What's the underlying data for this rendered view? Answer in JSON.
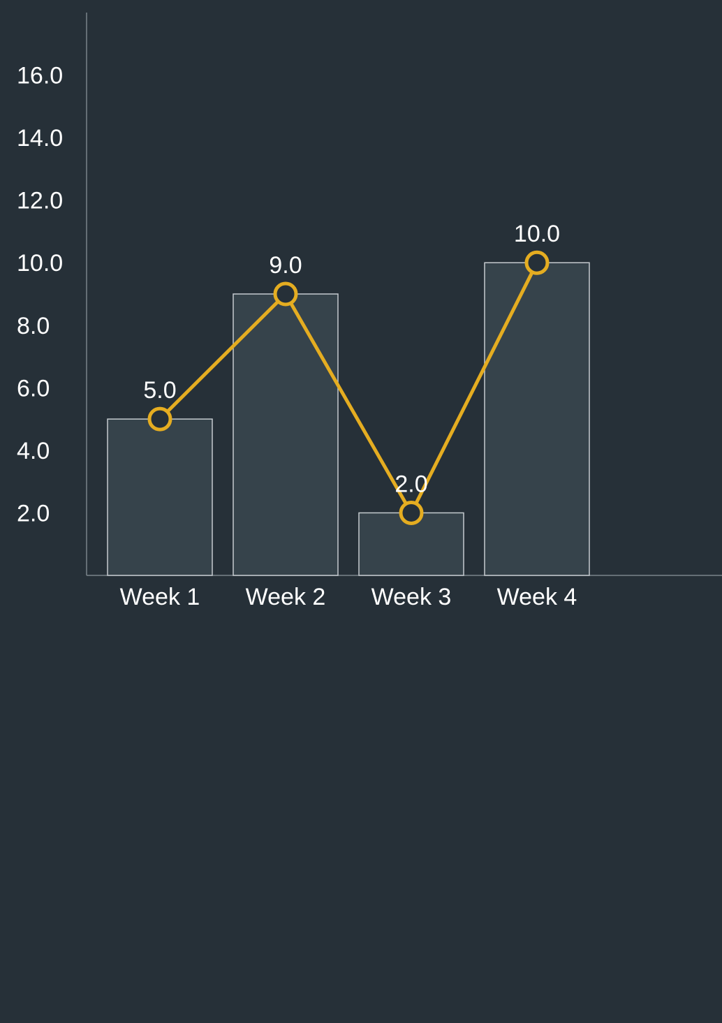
{
  "chart_data": {
    "type": "bar",
    "categories": [
      "Week 1",
      "Week 2",
      "Week 3",
      "Week 4"
    ],
    "series": [
      {
        "type": "bar",
        "values": [
          5.0,
          9.0,
          2.0,
          10.0
        ]
      },
      {
        "type": "line",
        "values": [
          5.0,
          9.0,
          2.0,
          10.0
        ]
      }
    ],
    "data_labels": [
      "5.0",
      "9.0",
      "2.0",
      "10.0"
    ],
    "y_ticks": [
      2.0,
      4.0,
      6.0,
      8.0,
      10.0,
      12.0,
      14.0,
      16.0
    ],
    "y_tick_labels": [
      "2.0",
      "4.0",
      "6.0",
      "8.0",
      "10.0",
      "12.0",
      "14.0",
      "16.0"
    ],
    "ylim": [
      0,
      18
    ],
    "title": "",
    "xlabel": "",
    "ylabel": "",
    "grid": false,
    "legend": "none",
    "colors": {
      "background": "#263038",
      "bar_fill": "#36434b",
      "bar_stroke": "#c5cbcf",
      "line": "#e5ad21",
      "marker_fill": "#263038",
      "axis": "#7a848a",
      "text": "#ffffff"
    }
  }
}
